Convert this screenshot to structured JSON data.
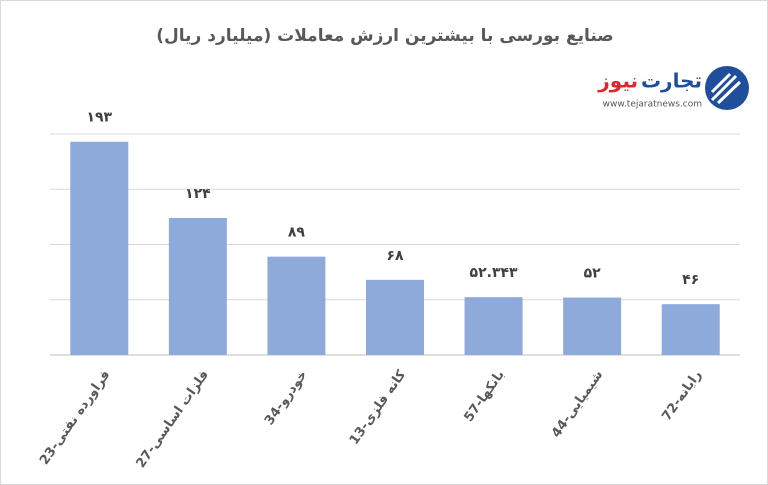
{
  "chart_data": {
    "type": "bar",
    "title": "صنایع بورسی با بیشترین ارزش معاملات  (میلیارد ریال)",
    "logo": {
      "name_part1": "تجارت",
      "name_part2": "نیوز",
      "url": "www.tejaratnews.com"
    },
    "categories": [
      "23-فراورده نفتی",
      "27-فلزات اساسی",
      "34-خودرو",
      "13-کانه فلزی",
      "57-بانکها",
      "44-شیمیایی",
      "72-رایانه"
    ],
    "values": [
      193,
      124,
      89,
      68,
      52.343,
      52,
      46
    ],
    "value_labels": [
      "۱۹۳",
      "۱۲۴",
      "۸۹",
      "۶۸",
      "۵۲.۳۴۳",
      "۵۲",
      "۴۶"
    ],
    "color": "#8eaadb",
    "ylim": [
      0,
      200
    ],
    "yticks": [
      0,
      50,
      100,
      150,
      200
    ],
    "grid": true
  }
}
